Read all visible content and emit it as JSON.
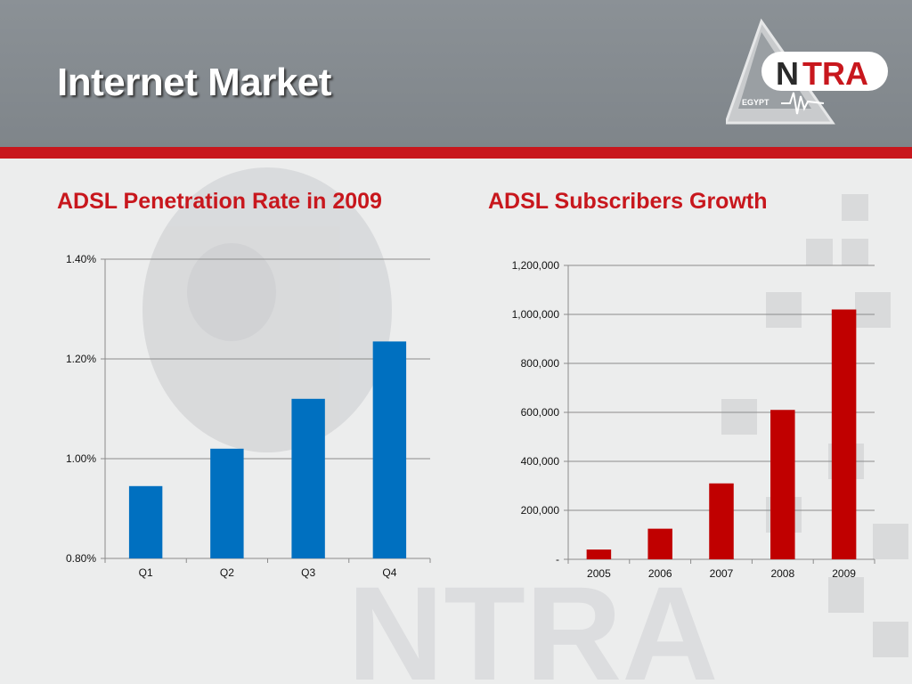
{
  "header": {
    "title": "Internet Market",
    "logo_text": "NTRA",
    "logo_subtext": "EGYPT"
  },
  "colors": {
    "header_bg": "#878d92",
    "accent_red": "#c8171d",
    "bar_blue": "#0070c0",
    "bar_red": "#c00000"
  },
  "chart_data": [
    {
      "type": "bar",
      "title": "ADSL Penetration Rate in 2009",
      "categories": [
        "Q1",
        "Q2",
        "Q3",
        "Q4"
      ],
      "values": [
        0.945,
        1.02,
        1.12,
        1.235
      ],
      "unit": "%",
      "ylim": [
        0.8,
        1.4
      ],
      "yticks": [
        "0.80%",
        "1.00%",
        "1.20%",
        "1.40%"
      ],
      "grid": true,
      "color": "#0070c0"
    },
    {
      "type": "bar",
      "title": "ADSL Subscribers Growth",
      "categories": [
        "2005",
        "2006",
        "2007",
        "2008",
        "2009"
      ],
      "values": [
        40000,
        125000,
        310000,
        610000,
        1020000
      ],
      "ylim": [
        0,
        1200000
      ],
      "yticks": [
        "-",
        "200,000",
        "400,000",
        "600,000",
        "800,000",
        "1,000,000",
        "1,200,000"
      ],
      "grid": true,
      "color": "#c00000"
    }
  ]
}
